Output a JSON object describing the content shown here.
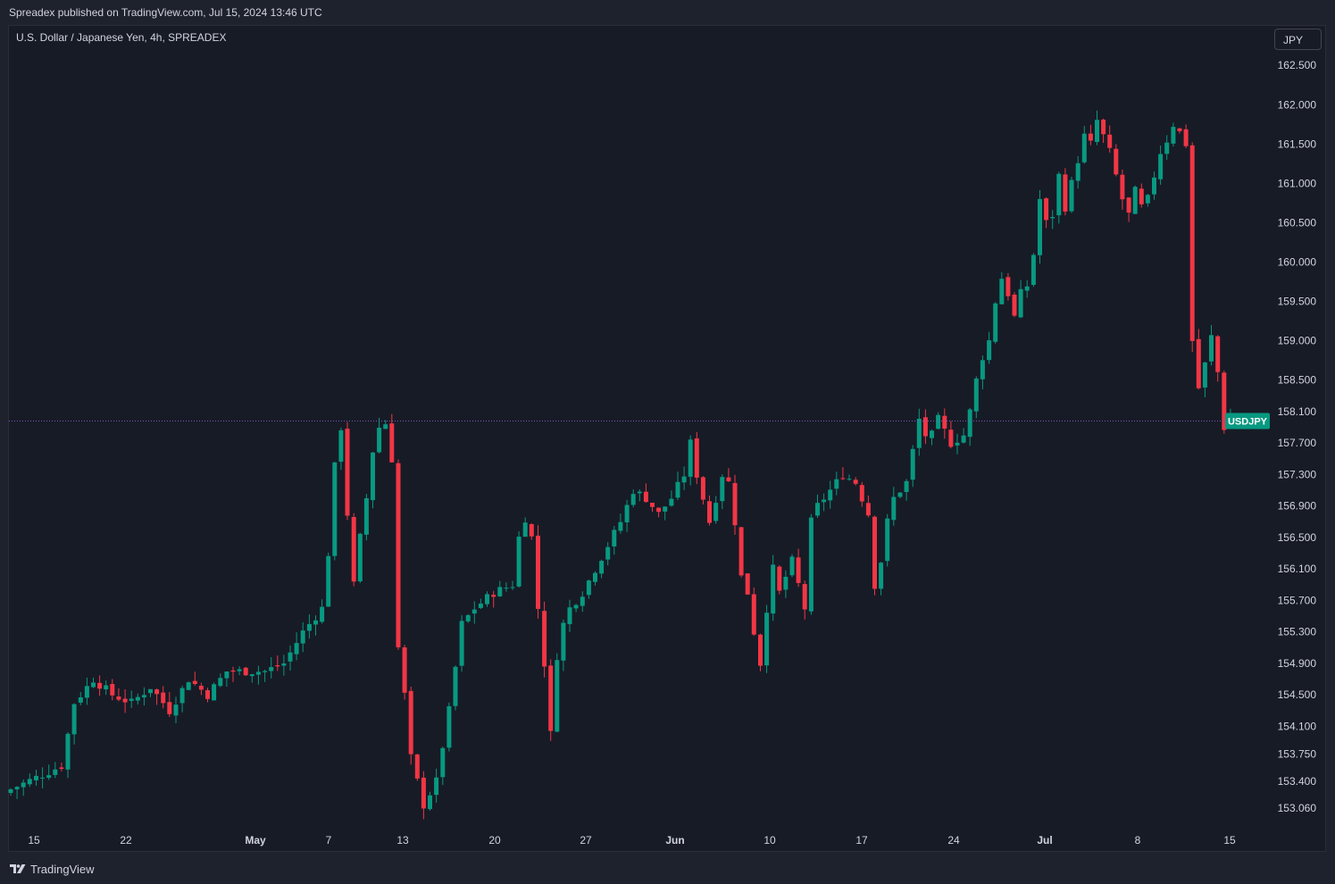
{
  "header": {
    "published": "Spreadex published on TradingView.com, Jul 15, 2024 13:46 UTC"
  },
  "chart_title": "U.S. Dollar / Japanese Yen, 4h, SPREADEX",
  "currency_button": "JPY",
  "footer": {
    "brand": "TradingView"
  },
  "colors": {
    "up": "#089981",
    "down": "#f23645",
    "price_line": "#7e57c2",
    "price_label_bg": "#089981",
    "axis_text": "#d1d4dc"
  },
  "chart_data": {
    "type": "candlestick",
    "symbol": "USDJPY",
    "interval": "4h",
    "x_ticks": [
      "15",
      "22",
      "May",
      "7",
      "13",
      "20",
      "27",
      "Jun",
      "10",
      "17",
      "24",
      "Jul",
      "8",
      "15"
    ],
    "y_ticks": [
      "162.500",
      "162.000",
      "161.500",
      "161.000",
      "160.500",
      "160.000",
      "159.500",
      "159.000",
      "158.500",
      "158.100",
      "157.700",
      "157.300",
      "156.900",
      "156.500",
      "156.100",
      "155.700",
      "155.300",
      "154.900",
      "154.500",
      "154.100",
      "153.750",
      "153.400",
      "153.060"
    ],
    "current_price_label": "USDJPY",
    "current_price": 157.98,
    "ylim": [
      152.8,
      162.65
    ],
    "path_points": [
      [
        0,
        153.3
      ],
      [
        8,
        153.6
      ],
      [
        10,
        154.4
      ],
      [
        13,
        154.7
      ],
      [
        16,
        154.5
      ],
      [
        19,
        154.4
      ],
      [
        22,
        154.6
      ],
      [
        25,
        154.3
      ],
      [
        28,
        154.7
      ],
      [
        31,
        154.5
      ],
      [
        34,
        154.8
      ],
      [
        37,
        154.8
      ],
      [
        40,
        154.8
      ],
      [
        43,
        154.9
      ],
      [
        46,
        155.3
      ],
      [
        49,
        155.6
      ],
      [
        50,
        156.3
      ],
      [
        51,
        157.4
      ],
      [
        52,
        157.9
      ],
      [
        53,
        156.8
      ],
      [
        54,
        155.9
      ],
      [
        55,
        156.5
      ],
      [
        56,
        157.0
      ],
      [
        57,
        157.6
      ],
      [
        58,
        157.9
      ],
      [
        59,
        157.95
      ],
      [
        60,
        157.5
      ],
      [
        61,
        155.1
      ],
      [
        62,
        154.5
      ],
      [
        63,
        153.7
      ],
      [
        65,
        153.1
      ],
      [
        67,
        153.4
      ],
      [
        69,
        154.3
      ],
      [
        71,
        155.4
      ],
      [
        73,
        155.6
      ],
      [
        76,
        155.8
      ],
      [
        79,
        155.9
      ],
      [
        80,
        156.5
      ],
      [
        81,
        156.75
      ],
      [
        82,
        156.5
      ],
      [
        83,
        155.6
      ],
      [
        84,
        154.9
      ],
      [
        85,
        154.0
      ],
      [
        86,
        155.0
      ],
      [
        87,
        155.4
      ],
      [
        88,
        155.6
      ],
      [
        90,
        155.8
      ],
      [
        92,
        156.1
      ],
      [
        94,
        156.4
      ],
      [
        96,
        156.7
      ],
      [
        98,
        157.1
      ],
      [
        100,
        157.0
      ],
      [
        102,
        156.8
      ],
      [
        104,
        157.0
      ],
      [
        106,
        157.3
      ],
      [
        107,
        157.7
      ],
      [
        108,
        157.3
      ],
      [
        110,
        156.7
      ],
      [
        112,
        157.3
      ],
      [
        113,
        157.2
      ],
      [
        114,
        156.7
      ],
      [
        115,
        156.0
      ],
      [
        116,
        155.8
      ],
      [
        117,
        155.3
      ],
      [
        118,
        154.9
      ],
      [
        119,
        155.6
      ],
      [
        120,
        156.1
      ],
      [
        121,
        155.8
      ],
      [
        123,
        156.2
      ],
      [
        125,
        155.6
      ],
      [
        126,
        156.7
      ],
      [
        127,
        156.9
      ],
      [
        129,
        157.1
      ],
      [
        131,
        157.3
      ],
      [
        133,
        157.2
      ],
      [
        135,
        156.8
      ],
      [
        136,
        155.9
      ],
      [
        137,
        156.2
      ],
      [
        138,
        156.7
      ],
      [
        139,
        157.0
      ],
      [
        141,
        157.2
      ],
      [
        142,
        157.6
      ],
      [
        143,
        158.0
      ],
      [
        144,
        157.8
      ],
      [
        145,
        157.8
      ],
      [
        146,
        158.0
      ],
      [
        148,
        157.7
      ],
      [
        150,
        157.8
      ],
      [
        151,
        158.1
      ],
      [
        152,
        158.5
      ],
      [
        153,
        158.8
      ],
      [
        154,
        159.0
      ],
      [
        155,
        159.5
      ],
      [
        156,
        159.8
      ],
      [
        157,
        159.6
      ],
      [
        158,
        159.3
      ],
      [
        159,
        159.6
      ],
      [
        160,
        159.7
      ],
      [
        161,
        160.1
      ],
      [
        162,
        160.8
      ],
      [
        163,
        160.5
      ],
      [
        164,
        160.6
      ],
      [
        165,
        161.1
      ],
      [
        166,
        160.7
      ],
      [
        167,
        161.0
      ],
      [
        168,
        161.3
      ],
      [
        169,
        161.6
      ],
      [
        170,
        161.5
      ],
      [
        171,
        161.8
      ],
      [
        172,
        161.6
      ],
      [
        173,
        161.4
      ],
      [
        174,
        161.1
      ],
      [
        175,
        160.8
      ],
      [
        176,
        160.6
      ],
      [
        177,
        160.9
      ],
      [
        178,
        160.7
      ],
      [
        179,
        160.8
      ],
      [
        180,
        161.1
      ],
      [
        181,
        161.4
      ],
      [
        182,
        161.55
      ],
      [
        183,
        161.75
      ],
      [
        184,
        161.65
      ],
      [
        185,
        161.5
      ],
      [
        186,
        159.0
      ],
      [
        187,
        158.4
      ],
      [
        188,
        158.7
      ],
      [
        189,
        159.05
      ],
      [
        190,
        158.6
      ],
      [
        191,
        157.9
      ],
      [
        192,
        158.0
      ],
      [
        193,
        157.98
      ]
    ]
  }
}
